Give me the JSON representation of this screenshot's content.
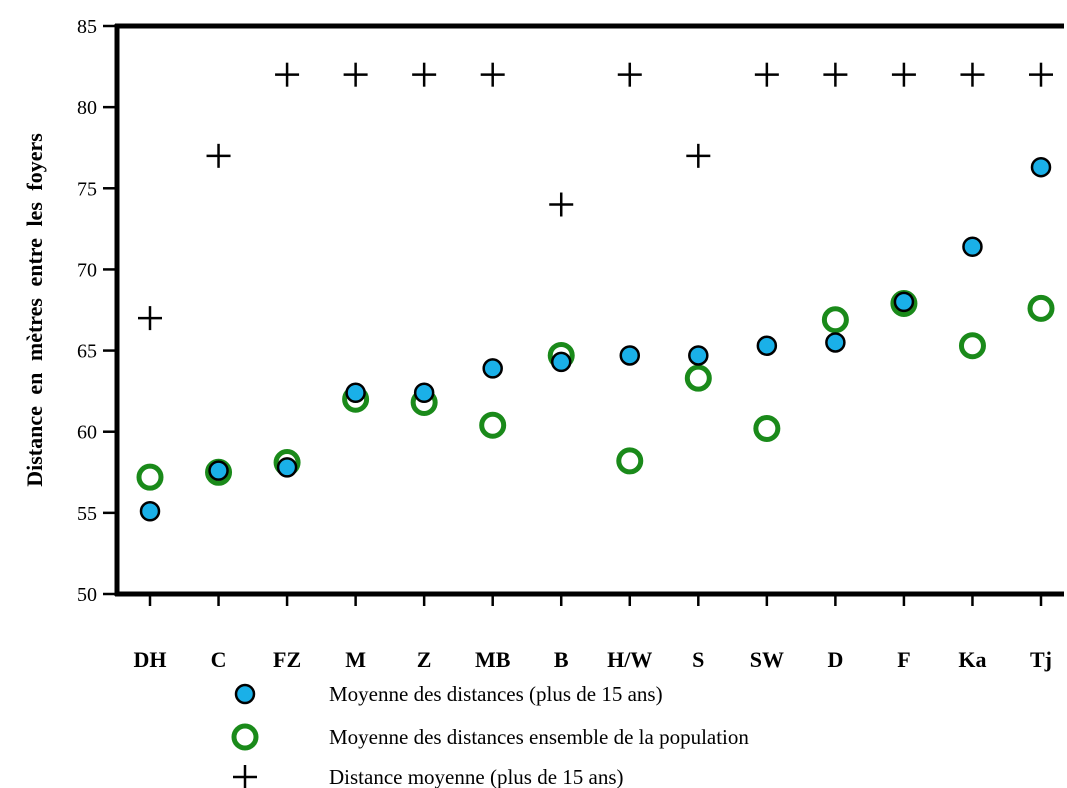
{
  "chart_data": {
    "type": "scatter",
    "ylabel": "Distance en mètres entre les foyers",
    "xlabel": "",
    "ylim": [
      50,
      85
    ],
    "yticks": [
      50,
      55,
      60,
      65,
      70,
      75,
      80,
      85
    ],
    "categories": [
      "DH",
      "C",
      "FZ",
      "M",
      "Z",
      "MB",
      "B",
      "H/W",
      "S",
      "SW",
      "D",
      "F",
      "Ka",
      "Tj"
    ],
    "grid": false,
    "legend_position": "bottom",
    "series": [
      {
        "name": "Moyenne des distances (plus de 15 ans)",
        "marker": "filled-circle",
        "color": "#1ab0e8",
        "values": [
          55.1,
          57.6,
          57.8,
          62.4,
          62.4,
          63.9,
          64.3,
          64.7,
          64.7,
          65.3,
          65.5,
          68.0,
          71.4,
          76.3
        ]
      },
      {
        "name": "Moyenne des distances ensemble de la population",
        "marker": "open-circle",
        "color": "#1a8a1a",
        "values": [
          57.2,
          57.5,
          58.1,
          62.0,
          61.8,
          60.4,
          64.7,
          58.2,
          63.3,
          60.2,
          66.9,
          67.9,
          65.3,
          67.6
        ]
      },
      {
        "name": "Distance moyenne (plus de 15 ans)",
        "marker": "plus",
        "color": "#000000",
        "values": [
          67,
          77,
          82,
          82,
          82,
          82,
          74,
          82,
          77,
          82,
          82,
          82,
          82,
          82
        ]
      }
    ]
  }
}
